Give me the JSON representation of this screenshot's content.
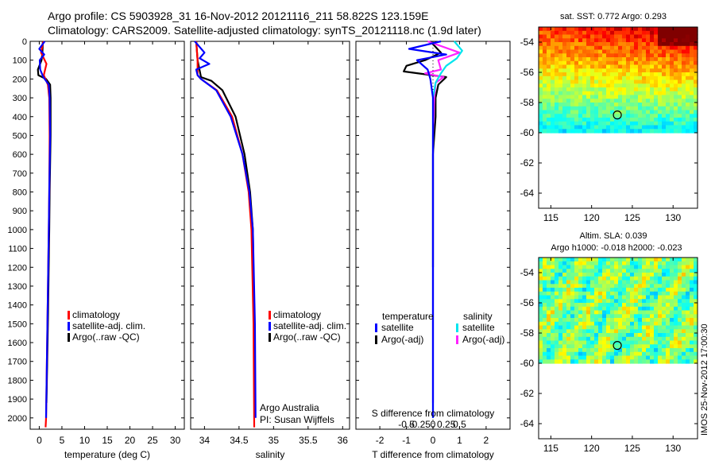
{
  "header": {
    "line1": "Argo profile: CS 5903928_31 16-Nov-2012 20121116_211 58.822S 123.159E",
    "line2": "Climatology: CARS2009. Satellite-adjusted climatology: synTS_20121118.nc (1.9d later)"
  },
  "colors": {
    "climatology": "#ff0000",
    "satellite": "#0000ff",
    "argo": "#000000",
    "sat_salinity": "#00e5ee",
    "argo_salinity": "#ff22ff"
  },
  "depth_axis": {
    "ticks": [
      0,
      100,
      200,
      300,
      400,
      500,
      600,
      700,
      800,
      900,
      1000,
      1100,
      1200,
      1300,
      1400,
      1500,
      1600,
      1700,
      1800,
      1900,
      2000
    ],
    "range": [
      0,
      2060
    ]
  },
  "chart_data": [
    {
      "type": "line",
      "title": "",
      "xlabel": "temperature (deg C)",
      "ylabel": "",
      "xlim": [
        -2,
        32
      ],
      "xticks": [
        0,
        5,
        10,
        15,
        20,
        25,
        30
      ],
      "ylim": [
        2060,
        0
      ],
      "legend": [
        "climatology",
        "satellite-adj. clim.",
        "Argo(..raw -QC)"
      ],
      "series": [
        {
          "name": "climatology",
          "depth": [
            0,
            60,
            120,
            180,
            230,
            300,
            500,
            800,
            1000,
            1500,
            2000,
            2050
          ],
          "values": [
            0.9,
            0.4,
            1.6,
            1.0,
            1.9,
            2.2,
            2.3,
            2.2,
            2.1,
            1.8,
            1.5,
            1.4
          ]
        },
        {
          "name": "satellite-adj. clim.",
          "depth": [
            0,
            40,
            70,
            100,
            150,
            190,
            230,
            300,
            500,
            800,
            1000,
            1500,
            2000
          ],
          "values": [
            1.2,
            0.0,
            1.1,
            0.1,
            0.2,
            0.9,
            2.1,
            2.3,
            2.4,
            2.2,
            2.1,
            1.8,
            1.5
          ]
        },
        {
          "name": "Argo(..raw -QC)",
          "depth": [
            0,
            60,
            100,
            150,
            180,
            200,
            230,
            300,
            500,
            800,
            1000,
            1500,
            1920
          ],
          "values": [
            0.8,
            0.7,
            0.5,
            -0.3,
            -0.2,
            1.5,
            2.4,
            2.5,
            2.5,
            2.3,
            2.2,
            1.9,
            1.6
          ]
        }
      ]
    },
    {
      "type": "line",
      "title": "",
      "xlabel": "salinity",
      "ylabel": "",
      "xlim": [
        33.8,
        36.1
      ],
      "xticks": [
        34,
        34.5,
        35,
        35.5,
        36
      ],
      "xtick_labels": [
        "34",
        "34.5",
        "35",
        "35.5",
        "36"
      ],
      "ylim": [
        2060,
        0
      ],
      "legend": [
        "climatology",
        "satellite-adj. clim.",
        "Argo(..raw -QC)"
      ],
      "series": [
        {
          "name": "climatology",
          "depth": [
            0,
            100,
            180,
            200,
            260,
            400,
            600,
            800,
            1000,
            1500,
            2050
          ],
          "values": [
            33.88,
            33.9,
            33.9,
            33.95,
            34.18,
            34.4,
            34.55,
            34.64,
            34.68,
            34.71,
            34.72
          ]
        },
        {
          "name": "satellite-adj. clim.",
          "depth": [
            0,
            60,
            90,
            120,
            150,
            180,
            200,
            260,
            400,
            600,
            800,
            1000,
            1500,
            2000
          ],
          "values": [
            33.86,
            34.0,
            33.93,
            34.07,
            33.88,
            33.9,
            33.95,
            34.17,
            34.38,
            34.55,
            34.65,
            34.7,
            34.73,
            34.74
          ]
        },
        {
          "name": "Argo(..raw -QC)",
          "depth": [
            0,
            100,
            190,
            210,
            260,
            400,
            600,
            800,
            1000,
            1500,
            1920
          ],
          "values": [
            33.88,
            33.9,
            33.95,
            34.1,
            34.26,
            34.45,
            34.58,
            34.66,
            34.7,
            34.72,
            34.73
          ]
        }
      ],
      "annotations": [
        "Argo Australia",
        "PI: Susan Wijffels"
      ]
    },
    {
      "type": "line",
      "title": "",
      "xlabel": "T difference from climatology",
      "secondary_xlabel": "S difference from climatology",
      "xlim": [
        -2.9,
        2.9
      ],
      "xticks": [
        -2,
        -1,
        0,
        1,
        2
      ],
      "secondary_ticks": [
        -0.5,
        -0.25,
        0,
        0.25,
        0.5
      ],
      "secondary_tick_labels": [
        "-0.5",
        "-0.25",
        "0",
        "0.25",
        "0.5"
      ],
      "ylim": [
        2060,
        0
      ],
      "legend_headers": [
        "temperature",
        "salinity"
      ],
      "legend": [
        "satellite",
        "Argo(-adj)",
        "satellite",
        "Argo(-adj)"
      ],
      "series": [
        {
          "name": "temperature satellite",
          "depth": [
            0,
            40,
            70,
            100,
            150,
            200,
            300,
            500,
            1000,
            1500,
            2000
          ],
          "values": [
            0.3,
            -0.9,
            0.5,
            -0.6,
            -0.2,
            -0.1,
            0.0,
            0.0,
            0.0,
            0.0,
            0.0
          ]
        },
        {
          "name": "temperature Argo(-adj)",
          "depth": [
            0,
            60,
            100,
            130,
            160,
            190,
            230,
            300,
            400,
            600,
            900,
            1200
          ],
          "values": [
            -0.1,
            0.3,
            -0.3,
            -1.0,
            -1.1,
            0.5,
            0.2,
            0.1,
            0.1,
            0.0,
            0.0,
            0.0
          ]
        },
        {
          "name": "salinity satellite",
          "depth": [
            0,
            50,
            90,
            130,
            170,
            220,
            300,
            500,
            1000,
            1500,
            2000
          ],
          "values": [
            0.8,
            1.1,
            0.9,
            0.5,
            0.3,
            0.1,
            0.0,
            0.0,
            0.0,
            0.0,
            0.0
          ]
        },
        {
          "name": "salinity Argo(-adj)",
          "depth": [
            0,
            60,
            100,
            150,
            170,
            190,
            220,
            300,
            500,
            1000,
            1500,
            1920
          ],
          "values": [
            -0.2,
            1.0,
            0.2,
            0.3,
            -0.3,
            0.4,
            0.1,
            0.05,
            0.0,
            0.0,
            0.0,
            0.0
          ]
        }
      ]
    },
    {
      "type": "heatmap",
      "title": "sat. SST: 0.772 Argo: 0.293",
      "xlim": [
        113.5,
        133
      ],
      "ylim": [
        -65,
        -53
      ],
      "xticks": [
        115,
        120,
        125,
        130
      ],
      "yticks": [
        -54,
        -56,
        -58,
        -60,
        -62,
        -64
      ],
      "data_lat_range": [
        -60,
        -53
      ],
      "marker": {
        "lon": 123.159,
        "lat": -58.822
      }
    },
    {
      "type": "heatmap",
      "title": "Altim. SLA: 0.039",
      "subtitle": "Argo h1000: -0.018 h2000: -0.023",
      "xlim": [
        113.5,
        133
      ],
      "ylim": [
        -65,
        -53
      ],
      "xticks": [
        115,
        120,
        125,
        130
      ],
      "yticks": [
        -54,
        -56,
        -58,
        -60,
        -62,
        -64
      ],
      "data_lat_range": [
        -60,
        -53
      ],
      "marker": {
        "lon": 123.159,
        "lat": -58.822
      }
    }
  ],
  "footer": {
    "stamp": "IMOS 25-Nov-2012 17:00:30"
  }
}
